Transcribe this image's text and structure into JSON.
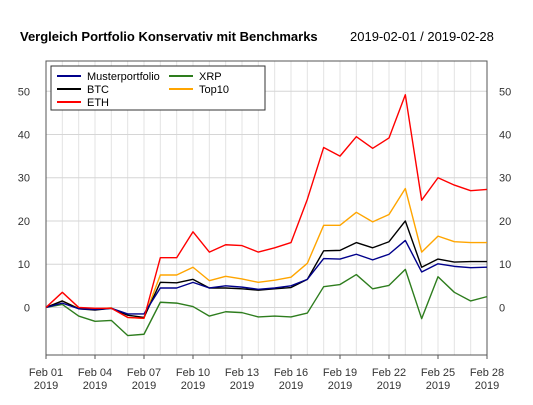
{
  "chart_data": {
    "type": "line",
    "title": "Vergleich Portfolio Konservativ mit Benchmarks",
    "subtitle": "2019-02-01 / 2019-02-28",
    "xlabel": "",
    "ylabel": "",
    "dates": [
      "2019-02-01",
      "2019-02-02",
      "2019-02-03",
      "2019-02-04",
      "2019-02-05",
      "2019-02-06",
      "2019-02-07",
      "2019-02-08",
      "2019-02-09",
      "2019-02-10",
      "2019-02-11",
      "2019-02-12",
      "2019-02-13",
      "2019-02-14",
      "2019-02-15",
      "2019-02-16",
      "2019-02-17",
      "2019-02-18",
      "2019-02-19",
      "2019-02-20",
      "2019-02-21",
      "2019-02-22",
      "2019-02-23",
      "2019-02-24",
      "2019-02-25",
      "2019-02-26",
      "2019-02-27",
      "2019-02-28"
    ],
    "x_ticks": [
      {
        "date": "2019-02-01",
        "line1": "Feb 01",
        "line2": "2019"
      },
      {
        "date": "2019-02-04",
        "line1": "Feb 04",
        "line2": "2019"
      },
      {
        "date": "2019-02-07",
        "line1": "Feb 07",
        "line2": "2019"
      },
      {
        "date": "2019-02-10",
        "line1": "Feb 10",
        "line2": "2019"
      },
      {
        "date": "2019-02-13",
        "line1": "Feb 13",
        "line2": "2019"
      },
      {
        "date": "2019-02-16",
        "line1": "Feb 16",
        "line2": "2019"
      },
      {
        "date": "2019-02-19",
        "line1": "Feb 19",
        "line2": "2019"
      },
      {
        "date": "2019-02-22",
        "line1": "Feb 22",
        "line2": "2019"
      },
      {
        "date": "2019-02-25",
        "line1": "Feb 25",
        "line2": "2019"
      },
      {
        "date": "2019-02-28",
        "line1": "Feb 28",
        "line2": "2019"
      }
    ],
    "y_ticks": [
      0,
      10,
      20,
      30,
      40,
      50
    ],
    "ylim": [
      -11,
      57
    ],
    "grid": true,
    "legend_position": "top-left",
    "series": [
      {
        "name": "Musterportfolio",
        "color": "#00008B",
        "values": [
          0,
          1,
          -0.3,
          -0.5,
          -0.2,
          -1.5,
          -1.5,
          4.5,
          4.5,
          5.8,
          4.5,
          5.0,
          4.7,
          4.2,
          4.5,
          5.0,
          6.5,
          11.3,
          11.2,
          12.3,
          11.0,
          12.3,
          15.5,
          8.2,
          10.1,
          9.5,
          9.2,
          9.3
        ]
      },
      {
        "name": "BTC",
        "color": "#000000",
        "values": [
          0,
          1.5,
          -0.3,
          -0.6,
          -0.2,
          -1.8,
          -2.3,
          5.8,
          5.7,
          6.5,
          4.5,
          4.5,
          4.3,
          4.0,
          4.3,
          4.6,
          6.5,
          13.1,
          13.2,
          15.0,
          13.8,
          15.2,
          20.0,
          9.3,
          11.2,
          10.5,
          10.6,
          10.6
        ]
      },
      {
        "name": "ETH",
        "color": "#FF0000",
        "values": [
          0,
          3.5,
          0,
          -0.2,
          -0.2,
          -2.3,
          -2.5,
          11.5,
          11.5,
          17.5,
          12.8,
          14.5,
          14.3,
          12.8,
          13.8,
          15.0,
          25.0,
          37.0,
          35.0,
          39.5,
          36.8,
          39.2,
          49.2,
          24.8,
          30.0,
          28.3,
          27.0,
          27.3
        ]
      },
      {
        "name": "XRP",
        "color": "#2E7D1E",
        "values": [
          0,
          0.7,
          -2.0,
          -3.2,
          -3.0,
          -6.5,
          -6.2,
          1.2,
          1.0,
          0.2,
          -2.0,
          -1.0,
          -1.2,
          -2.2,
          -2.0,
          -2.2,
          -1.3,
          4.8,
          5.3,
          7.6,
          4.3,
          5.1,
          8.8,
          -2.6,
          7.1,
          3.5,
          1.5,
          2.5
        ]
      },
      {
        "name": "Top10",
        "color": "#FFA500",
        "values": [
          0,
          1.5,
          -0.2,
          -0.4,
          -0.1,
          -2.3,
          -2.5,
          7.5,
          7.5,
          9.3,
          6.2,
          7.2,
          6.6,
          5.8,
          6.3,
          7.0,
          10.2,
          19.0,
          19.0,
          22.0,
          19.8,
          21.5,
          27.5,
          12.8,
          16.5,
          15.2,
          15.0,
          15.0
        ]
      }
    ]
  }
}
